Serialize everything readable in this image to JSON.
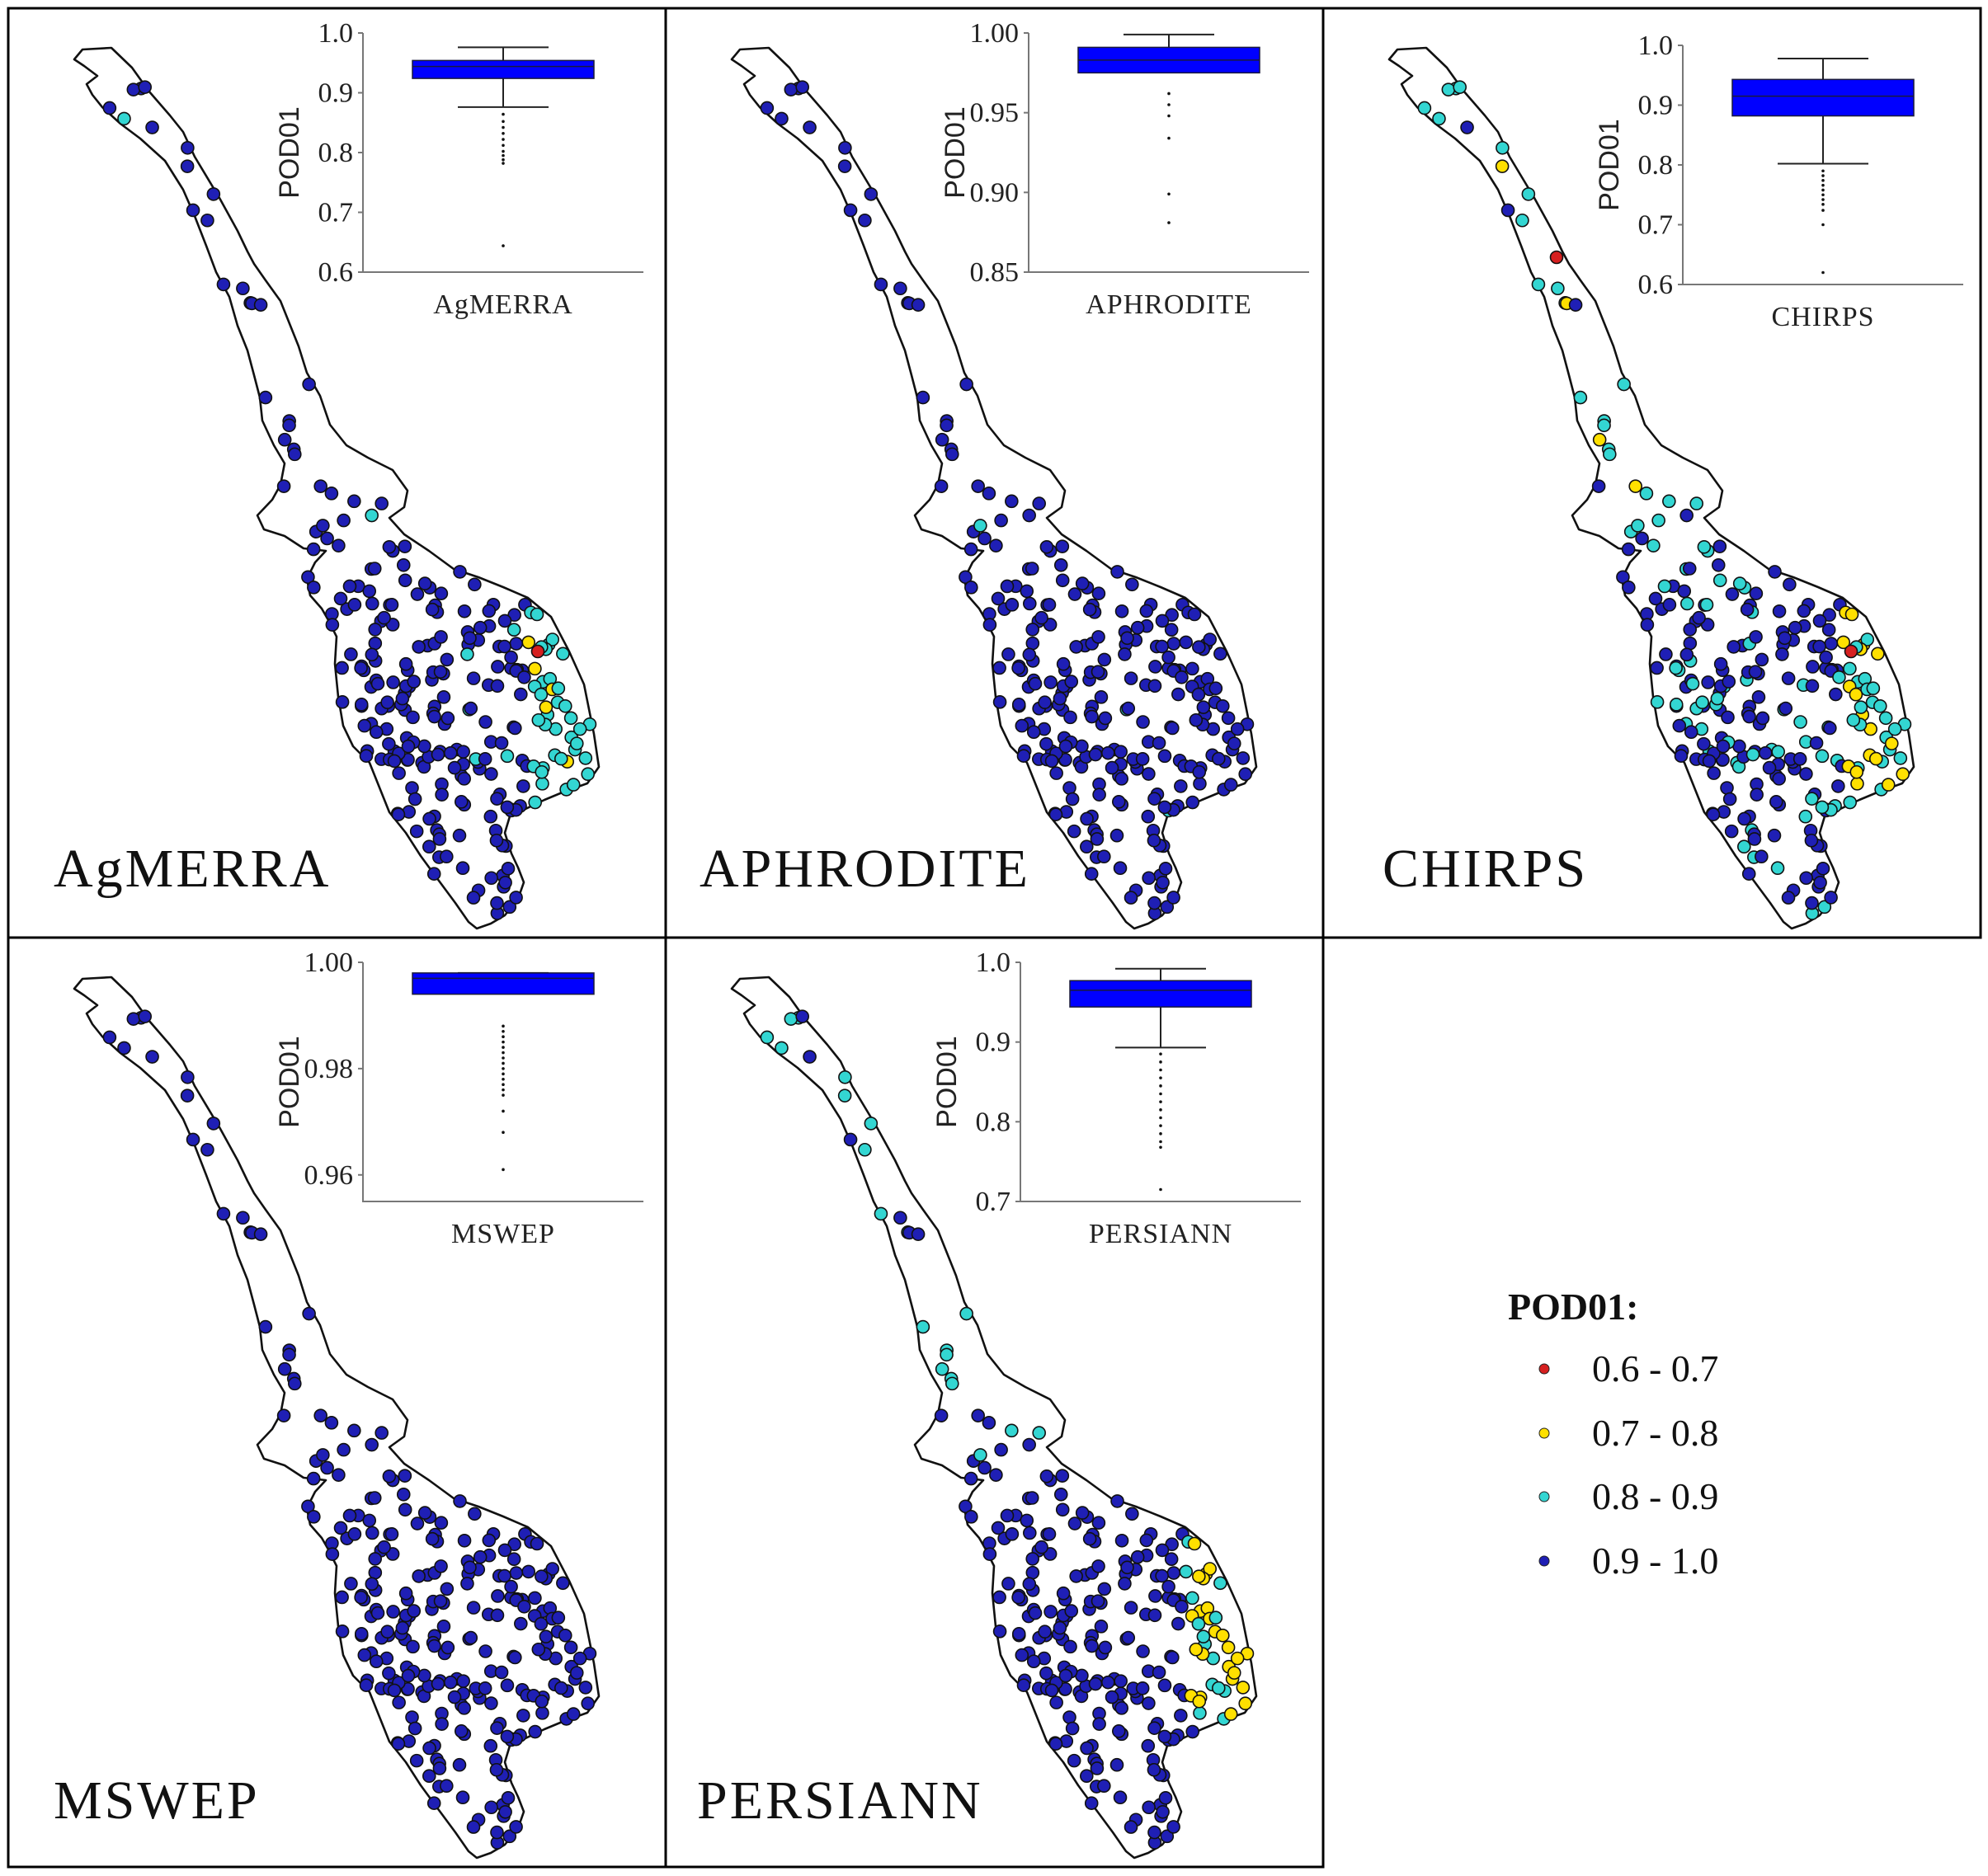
{
  "colors": {
    "range_0.6_0.7": "#d62020",
    "range_0.7_0.8": "#ffe000",
    "range_0.8_0.9": "#33d6d2",
    "range_0.9_1.0": "#1f1fb5",
    "box_fill": "#0000ff"
  },
  "legend": {
    "title": "POD01:",
    "items": [
      {
        "label": "0.6 - 0.7",
        "color": "#d62020"
      },
      {
        "label": "0.7 - 0.8",
        "color": "#ffe000"
      },
      {
        "label": "0.8 - 0.9",
        "color": "#33d6d2"
      },
      {
        "label": "0.9 - 1.0",
        "color": "#1f1fb5"
      }
    ]
  },
  "panels": [
    {
      "name": "AgMERRA",
      "title": "AgMERRA"
    },
    {
      "name": "APHRODITE",
      "title": "APHRODITE"
    },
    {
      "name": "CHIRPS",
      "title": "CHIRPS"
    },
    {
      "name": "MSWEP",
      "title": "MSWEP"
    },
    {
      "name": "PERSIANN",
      "title": "PERSIANN"
    }
  ],
  "chart_data": [
    {
      "type": "box",
      "dataset": "AgMERRA",
      "ylabel": "POD01",
      "xlabel": "AgMERRA",
      "ylim": [
        0.6,
        1.0
      ],
      "yticks": [
        "1.0",
        "0.9",
        "0.8",
        "0.7",
        "0.6"
      ],
      "whisker_high": 0.976,
      "q3": 0.954,
      "median": 0.944,
      "q1": 0.924,
      "whisker_low": 0.876,
      "outliers": [
        0.864,
        0.852,
        0.842,
        0.832,
        0.822,
        0.812,
        0.802,
        0.795,
        0.788,
        0.782,
        0.644
      ]
    },
    {
      "type": "box",
      "dataset": "APHRODITE",
      "ylabel": "POD01",
      "xlabel": "APHRODITE",
      "ylim": [
        0.85,
        1.0
      ],
      "yticks": [
        "1.00",
        "0.95",
        "0.90",
        "0.85"
      ],
      "whisker_high": 0.999,
      "q3": 0.991,
      "median": 0.983,
      "q1": 0.975,
      "whisker_low": 0.975,
      "outliers": [
        0.962,
        0.955,
        0.948,
        0.934,
        0.899,
        0.881
      ]
    },
    {
      "type": "box",
      "dataset": "CHIRPS",
      "ylabel": "POD01",
      "xlabel": "CHIRPS",
      "ylim": [
        0.6,
        1.0
      ],
      "yticks": [
        "1.0",
        "0.9",
        "0.8",
        "0.7",
        "0.6"
      ],
      "whisker_high": 0.978,
      "q3": 0.943,
      "median": 0.915,
      "q1": 0.882,
      "whisker_low": 0.802,
      "outliers": [
        0.79,
        0.782,
        0.774,
        0.766,
        0.758,
        0.75,
        0.742,
        0.734,
        0.724,
        0.7,
        0.62
      ]
    },
    {
      "type": "box",
      "dataset": "MSWEP",
      "ylabel": "POD01",
      "xlabel": "MSWEP",
      "ylim": [
        0.955,
        1.0
      ],
      "yticks": [
        "1.00",
        "0.98",
        "0.96"
      ],
      "whisker_high": 0.998,
      "q3": 0.998,
      "median": 0.997,
      "q1": 0.994,
      "whisker_low": 0.994,
      "outliers": [
        0.988,
        0.987,
        0.986,
        0.985,
        0.984,
        0.983,
        0.982,
        0.981,
        0.98,
        0.979,
        0.978,
        0.977,
        0.976,
        0.975,
        0.972,
        0.968,
        0.961
      ]
    },
    {
      "type": "box",
      "dataset": "PERSIANN",
      "ylabel": "POD01",
      "xlabel": "PERSIANN",
      "ylim": [
        0.7,
        1.0
      ],
      "yticks": [
        "1.0",
        "0.9",
        "0.8",
        "0.7"
      ],
      "whisker_high": 0.992,
      "q3": 0.977,
      "median": 0.965,
      "q1": 0.944,
      "whisker_low": 0.893,
      "outliers": [
        0.885,
        0.875,
        0.865,
        0.855,
        0.845,
        0.835,
        0.825,
        0.815,
        0.805,
        0.795,
        0.785,
        0.775,
        0.768,
        0.715
      ]
    }
  ]
}
